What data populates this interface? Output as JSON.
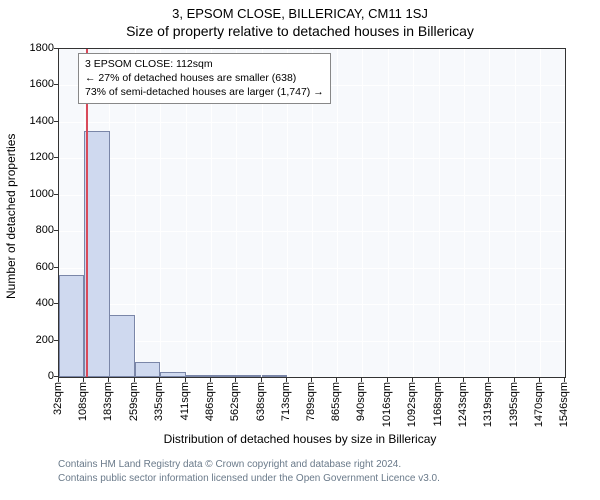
{
  "header": {
    "address": "3, EPSOM CLOSE, BILLERICAY, CM11 1SJ",
    "title": "Size of property relative to detached houses in Billericay"
  },
  "chart": {
    "type": "histogram",
    "background_color": "#f7f9fc",
    "grid_color": "#ffffff",
    "border_color": "#333333",
    "bar_fill": "#cfd9ef",
    "bar_stroke": "#7a86a8",
    "marker_color": "#d94a5a",
    "marker_x": 112,
    "ylim": [
      0,
      1800
    ],
    "ytick_step": 200,
    "ylabel": "Number of detached properties",
    "xlabel": "Distribution of detached houses by size in Billericay",
    "x_ticks": [
      32,
      108,
      183,
      259,
      335,
      411,
      486,
      562,
      638,
      713,
      789,
      865,
      940,
      1016,
      1092,
      1168,
      1243,
      1319,
      1395,
      1470,
      1546
    ],
    "x_unit": "sqm",
    "bin_width": 75.7,
    "bars": [
      {
        "x": 32,
        "count": 560
      },
      {
        "x": 108,
        "count": 1350
      },
      {
        "x": 183,
        "count": 340
      },
      {
        "x": 259,
        "count": 80
      },
      {
        "x": 335,
        "count": 30
      },
      {
        "x": 411,
        "count": 12
      },
      {
        "x": 486,
        "count": 10
      },
      {
        "x": 562,
        "count": 10
      },
      {
        "x": 638,
        "count": 3
      }
    ],
    "label_fontsize": 12,
    "tick_fontsize": 11
  },
  "annotation": {
    "line1": "3 EPSOM CLOSE: 112sqm",
    "line2": "← 27% of detached houses are smaller (638)",
    "line3": "73% of semi-detached houses are larger (1,747) →"
  },
  "attribution": {
    "line1": "Contains HM Land Registry data © Crown copyright and database right 2024.",
    "line2": "Contains public sector information licensed under the Open Government Licence v3.0."
  }
}
